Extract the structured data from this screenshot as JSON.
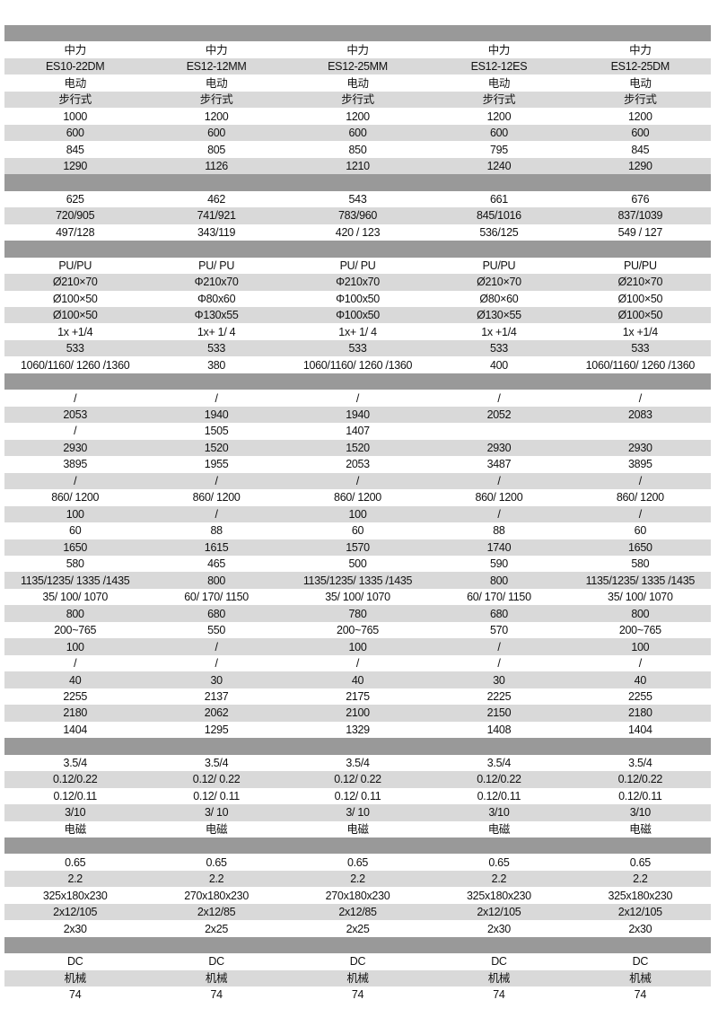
{
  "colors": {
    "section_bar": "#999999",
    "alt_row": "#d9d9d9"
  },
  "sections": [
    {
      "rows": [
        [
          "中力",
          "中力",
          "中力",
          "中力",
          "中力"
        ],
        [
          "ES10-22DM",
          "ES12-12MM",
          "ES12-25MM",
          "ES12-12ES",
          "ES12-25DM"
        ],
        [
          "电动",
          "电动",
          "电动",
          "电动",
          "电动"
        ],
        [
          "步行式",
          "步行式",
          "步行式",
          "步行式",
          "步行式"
        ],
        [
          "1000",
          "1200",
          "1200",
          "1200",
          "1200"
        ],
        [
          "600",
          "600",
          "600",
          "600",
          "600"
        ],
        [
          "845",
          "805",
          "850",
          "795",
          "845"
        ],
        [
          "1290",
          "1126",
          "1210",
          "1240",
          "1290"
        ]
      ]
    },
    {
      "rows": [
        [
          "625",
          "462",
          "543",
          "661",
          "676"
        ],
        [
          "720/905",
          "741/921",
          "783/960",
          "845/1016",
          "837/1039"
        ],
        [
          "497/128",
          "343/119",
          "420 / 123",
          "536/125",
          "549 / 127"
        ]
      ]
    },
    {
      "rows": [
        [
          "PU/PU",
          "PU/ PU",
          "PU/ PU",
          "PU/PU",
          "PU/PU"
        ],
        [
          "Ø210×70",
          "Φ210x70",
          "Φ210x70",
          "Ø210×70",
          "Ø210×70"
        ],
        [
          "Ø100×50",
          "Φ80x60",
          "Φ100x50",
          "Ø80×60",
          "Ø100×50"
        ],
        [
          "Ø100×50",
          "Φ130x55",
          "Φ100x50",
          "Ø130×55",
          "Ø100×50"
        ],
        [
          "1x +1/4",
          "1x+ 1/ 4",
          "1x+ 1/ 4",
          "1x +1/4",
          "1x +1/4"
        ],
        [
          "533",
          "533",
          "533",
          "533",
          "533"
        ],
        [
          "1060/1160/ 1260 /1360",
          "380",
          "1060/1160/ 1260 /1360",
          "400",
          "1060/1160/ 1260 /1360"
        ]
      ]
    },
    {
      "rows": [
        [
          "/",
          "/",
          "/",
          "/",
          "/"
        ],
        [
          "2053",
          "1940",
          "1940",
          "2052",
          "2083"
        ],
        [
          "/",
          "1505",
          "1407",
          "",
          ""
        ],
        [
          "2930",
          "1520",
          "1520",
          "2930",
          "2930"
        ],
        [
          "3895",
          "1955",
          "2053",
          "3487",
          "3895"
        ],
        [
          "/",
          "/",
          "/",
          "/",
          "/"
        ],
        [
          "860/ 1200",
          "860/ 1200",
          "860/ 1200",
          "860/ 1200",
          "860/ 1200"
        ],
        [
          "100",
          "/",
          "100",
          "/",
          "/"
        ],
        [
          "60",
          "88",
          "60",
          "88",
          "60"
        ],
        [
          "1650",
          "1615",
          "1570",
          "1740",
          "1650"
        ],
        [
          "580",
          "465",
          "500",
          "590",
          "580"
        ],
        [
          "1135/1235/ 1335 /1435",
          "800",
          "1135/1235/ 1335 /1435",
          "800",
          "1135/1235/ 1335 /1435"
        ],
        [
          "35/ 100/ 1070",
          "60/ 170/ 1150",
          "35/ 100/ 1070",
          "60/ 170/ 1150",
          "35/ 100/ 1070"
        ],
        [
          "800",
          "680",
          "780",
          "680",
          "800"
        ],
        [
          "200~765",
          "550",
          "200~765",
          "570",
          "200~765"
        ],
        [
          "100",
          "/",
          "100",
          "/",
          "100"
        ],
        [
          "/",
          "/",
          "/",
          "/",
          "/"
        ],
        [
          "40",
          "30",
          "40",
          "30",
          "40"
        ],
        [
          "2255",
          "2137",
          "2175",
          "2225",
          "2255"
        ],
        [
          "2180",
          "2062",
          "2100",
          "2150",
          "2180"
        ],
        [
          "1404",
          "1295",
          "1329",
          "1408",
          "1404"
        ]
      ]
    },
    {
      "rows": [
        [
          "3.5/4",
          "3.5/4",
          "3.5/4",
          "3.5/4",
          "3.5/4"
        ],
        [
          "0.12/0.22",
          "0.12/ 0.22",
          "0.12/ 0.22",
          "0.12/0.22",
          "0.12/0.22"
        ],
        [
          "0.12/0.11",
          "0.12/ 0.11",
          "0.12/ 0.11",
          "0.12/0.11",
          "0.12/0.11"
        ],
        [
          "3/10",
          "3/ 10",
          "3/ 10",
          "3/10",
          "3/10"
        ],
        [
          "电磁",
          "电磁",
          "电磁",
          "电磁",
          "电磁"
        ]
      ]
    },
    {
      "rows": [
        [
          "0.65",
          "0.65",
          "0.65",
          "0.65",
          "0.65"
        ],
        [
          "2.2",
          "2.2",
          "2.2",
          "2.2",
          "2.2"
        ],
        [
          "325x180x230",
          "270x180x230",
          "270x180x230",
          "325x180x230",
          "325x180x230"
        ],
        [
          "2x12/105",
          "2x12/85",
          "2x12/85",
          "2x12/105",
          "2x12/105"
        ],
        [
          "2x30",
          "2x25",
          "2x25",
          "2x30",
          "2x30"
        ]
      ]
    },
    {
      "rows": [
        [
          "DC",
          "DC",
          "DC",
          "DC",
          "DC"
        ],
        [
          "机械",
          "机械",
          "机械",
          "机械",
          "机械"
        ],
        [
          "74",
          "74",
          "74",
          "74",
          "74"
        ]
      ]
    }
  ]
}
